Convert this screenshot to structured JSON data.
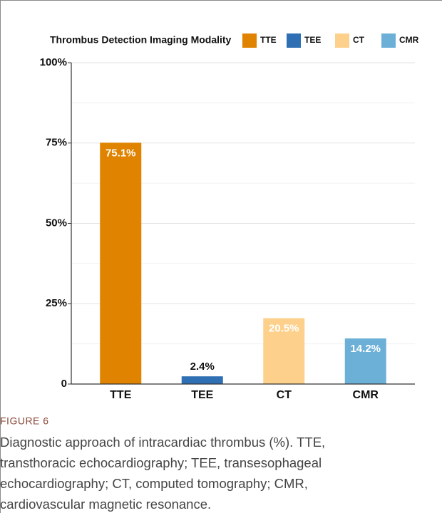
{
  "chart_data": {
    "type": "bar",
    "legend_title": "Thrombus Detection Imaging Modality",
    "categories": [
      "TTE",
      "TEE",
      "CT",
      "CMR"
    ],
    "values": [
      75.1,
      2.4,
      20.5,
      14.2
    ],
    "value_labels": [
      "75.1%",
      "2.4%",
      "20.5%",
      "14.2%"
    ],
    "colors": [
      "#e08300",
      "#2f6fb3",
      "#fdd18c",
      "#6cb0d8"
    ],
    "ylim": [
      0,
      100
    ],
    "yticks": [
      {
        "value": 0,
        "label": "0"
      },
      {
        "value": 25,
        "label": "25%"
      },
      {
        "value": 50,
        "label": "50%"
      },
      {
        "value": 75,
        "label": "75%"
      },
      {
        "value": 100,
        "label": "100%"
      }
    ],
    "yminor": [
      12.5,
      37.5,
      62.5,
      87.5
    ],
    "grid": true,
    "legend": "top"
  },
  "caption": {
    "label": "FIGURE 6",
    "lines": [
      "Diagnostic approach of intracardiac thrombus (%). TTE,",
      "transthoracic echocardiography; TEE, transesophageal",
      "echocardiography; CT, computed tomography; CMR,",
      "cardiovascular magnetic resonance."
    ]
  }
}
